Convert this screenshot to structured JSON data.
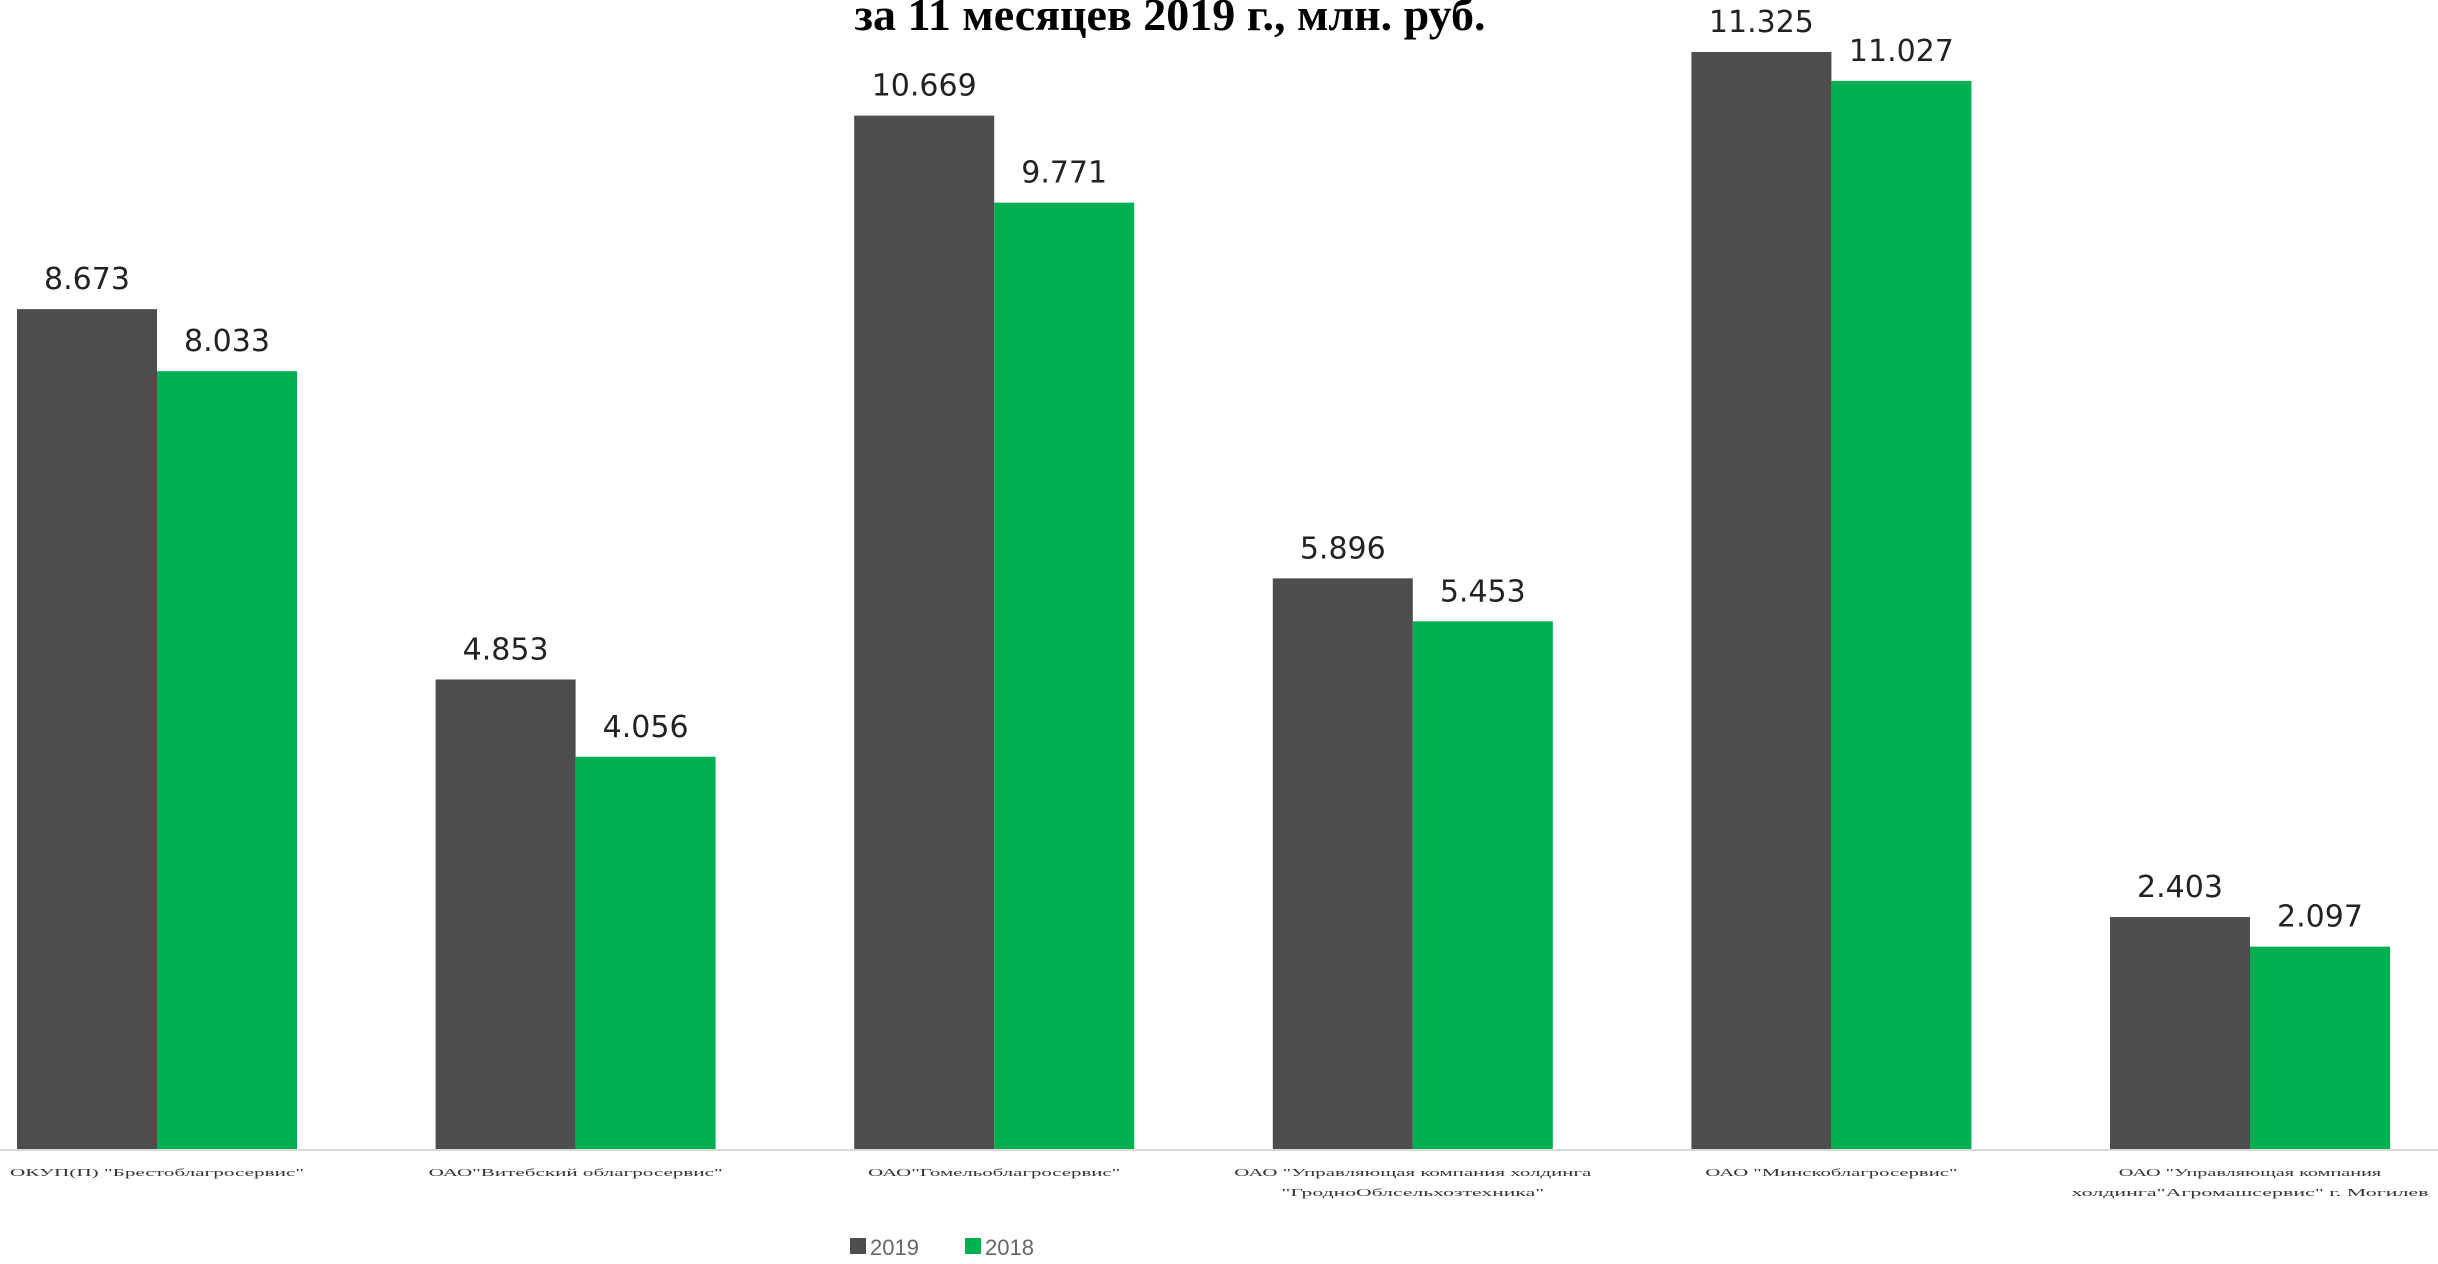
{
  "chart_data": {
    "type": "bar",
    "title": "за 11 месяцев 2019 г., млн. руб.",
    "categories": [
      [
        "ОКУП(П) \"Брестоблагросервис\""
      ],
      [
        "ОАО\"Витебский облагросервис\""
      ],
      [
        "ОАО\"Гомельоблагросервис\""
      ],
      [
        "ОАО \"Управляющая компания холдинга",
        "\"ГродноОблсельхозтехника\""
      ],
      [
        "ОАО \"Минскоблагросервис\""
      ],
      [
        "ОАО \"Управляющая компания",
        "холдинга\"Агромашсервис\" г. Могилев"
      ]
    ],
    "series": [
      {
        "name": "2019",
        "color": "#4d4d4d",
        "values": [
          8.673,
          4.853,
          10.669,
          5.896,
          11.325,
          2.403
        ],
        "labels": [
          "8.673",
          "4.853",
          "10.669",
          "5.896",
          "11.325",
          "2.403"
        ]
      },
      {
        "name": "2018",
        "color": "#00b050",
        "values": [
          8.033,
          4.056,
          9.771,
          5.453,
          11.027,
          2.097
        ],
        "labels": [
          "8.033",
          "4.056",
          "9.771",
          "5.453",
          "11.027",
          "2.097"
        ]
      }
    ],
    "ylim": [
      0,
      11.325
    ],
    "grid": false,
    "legend_position": "bottom"
  }
}
